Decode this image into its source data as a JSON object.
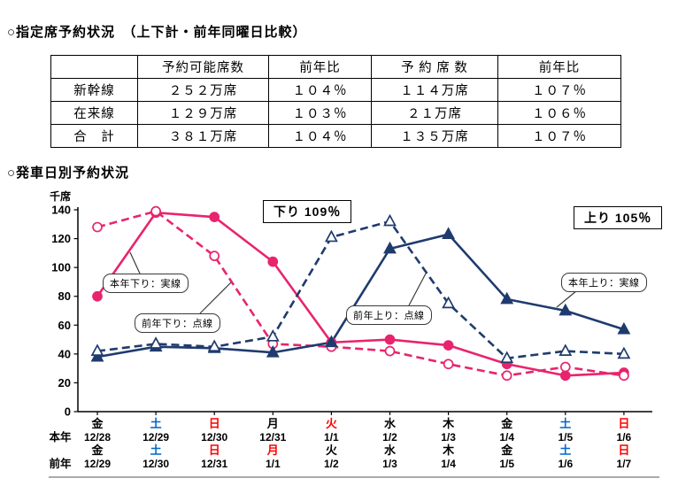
{
  "page": {
    "title_reservation": "○指定席予約状況　（上下計・前年同曜日比較）",
    "title_by_date": "○発車日別予約状況"
  },
  "table": {
    "col_headers": [
      "",
      "予約可能席数",
      "前年比",
      "予 約 席 数",
      "前年比"
    ],
    "rows": [
      {
        "label": "新幹線",
        "values": [
          "２５２万席",
          "１０４％",
          "１１４万席",
          "１０７％"
        ]
      },
      {
        "label": "在来線",
        "values": [
          "１２９万席",
          "１０３％",
          "２１万席",
          "１０６％"
        ]
      },
      {
        "label": "合　計",
        "values": [
          "３８１万席",
          "１０４％",
          "１３５万席",
          "１０７％"
        ]
      }
    ]
  },
  "chart_data": {
    "type": "line",
    "y_unit_label": "千席",
    "ylim": [
      0,
      140
    ],
    "y_ticks": [
      0,
      20,
      40,
      60,
      80,
      100,
      120,
      140
    ],
    "row_label_this_year": "本年",
    "row_label_prev_year": "前年",
    "categories_this_year": [
      {
        "day": "金",
        "date": "12/28",
        "day_color": "#000000"
      },
      {
        "day": "土",
        "date": "12/29",
        "day_color": "#0066CC"
      },
      {
        "day": "日",
        "date": "12/30",
        "day_color": "#FF0000"
      },
      {
        "day": "月",
        "date": "12/31",
        "day_color": "#000000"
      },
      {
        "day": "火",
        "date": "1/1",
        "day_color": "#FF0000"
      },
      {
        "day": "水",
        "date": "1/2",
        "day_color": "#000000"
      },
      {
        "day": "木",
        "date": "1/3",
        "day_color": "#000000"
      },
      {
        "day": "金",
        "date": "1/4",
        "day_color": "#000000"
      },
      {
        "day": "土",
        "date": "1/5",
        "day_color": "#0066CC"
      },
      {
        "day": "日",
        "date": "1/6",
        "day_color": "#FF0000"
      }
    ],
    "categories_prev_year": [
      {
        "day": "金",
        "date": "12/29",
        "day_color": "#000000"
      },
      {
        "day": "土",
        "date": "12/30",
        "day_color": "#0066CC"
      },
      {
        "day": "日",
        "date": "12/31",
        "day_color": "#FF0000"
      },
      {
        "day": "月",
        "date": "1/1",
        "day_color": "#FF0000"
      },
      {
        "day": "火",
        "date": "1/2",
        "day_color": "#000000"
      },
      {
        "day": "水",
        "date": "1/3",
        "day_color": "#000000"
      },
      {
        "day": "木",
        "date": "1/4",
        "day_color": "#000000"
      },
      {
        "day": "金",
        "date": "1/5",
        "day_color": "#000000"
      },
      {
        "day": "土",
        "date": "1/6",
        "day_color": "#0066CC"
      },
      {
        "day": "日",
        "date": "1/7",
        "day_color": "#FF0000"
      }
    ],
    "series": [
      {
        "name": "本年下り：実線",
        "line": "solid",
        "marker": "filled-circle",
        "color": "#E8246E",
        "values": [
          80,
          138,
          135,
          104,
          48,
          50,
          46,
          33,
          25,
          27
        ]
      },
      {
        "name": "前年下り：点線",
        "line": "dashed",
        "marker": "open-circle",
        "color": "#E8246E",
        "values": [
          128,
          139,
          108,
          47,
          45,
          42,
          33,
          25,
          31,
          25
        ]
      },
      {
        "name": "本年上り：実線",
        "line": "solid",
        "marker": "filled-triangle",
        "color": "#1F3B6E",
        "values": [
          38,
          45,
          44,
          41,
          48,
          113,
          123,
          78,
          70,
          57
        ]
      },
      {
        "name": "前年上り：点線",
        "line": "dashed",
        "marker": "open-triangle",
        "color": "#1F3B6E",
        "values": [
          42,
          47,
          45,
          52,
          121,
          132,
          75,
          37,
          42,
          40
        ]
      }
    ],
    "annotations": [
      {
        "text": "下り 109％"
      },
      {
        "text": "上り 105％"
      }
    ],
    "callouts": [
      {
        "text": "本年下り：実線"
      },
      {
        "text": "前年下り：点線"
      },
      {
        "text": "前年上り：点線"
      },
      {
        "text": "本年上り：実線"
      }
    ]
  }
}
